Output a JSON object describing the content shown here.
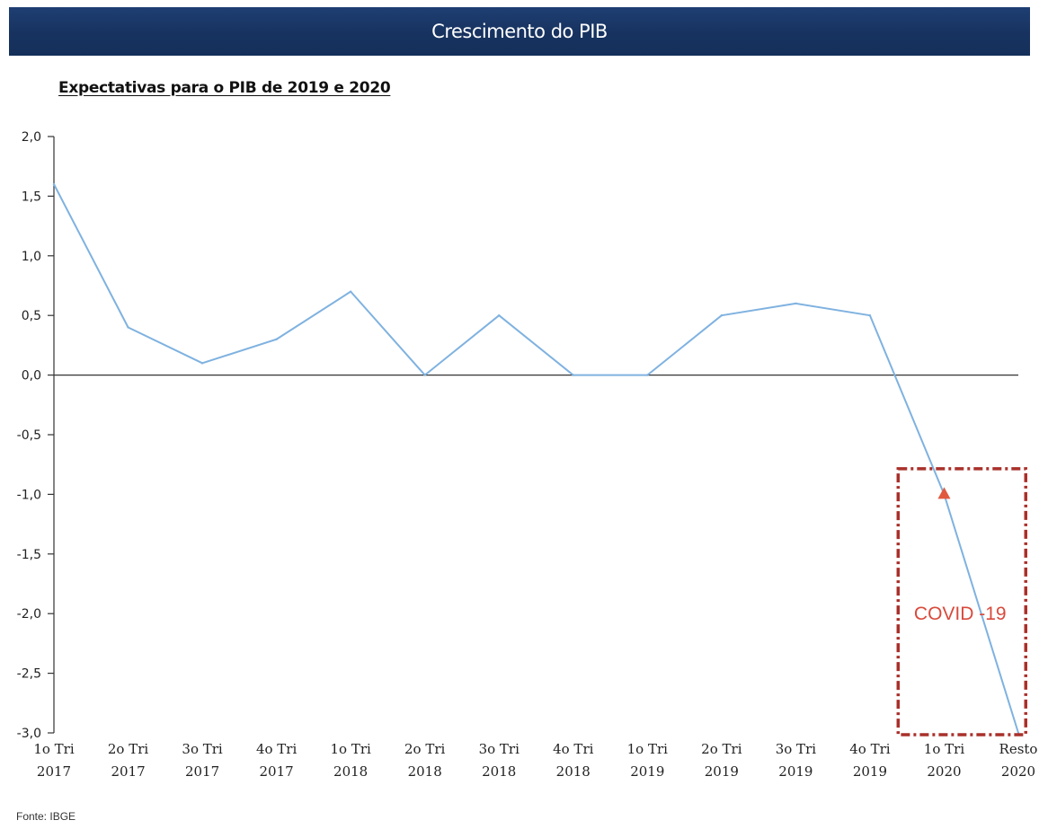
{
  "header": {
    "title": "Crescimento do PIB"
  },
  "source": "Fonte: IBGE",
  "colors": {
    "header_bg": "#17325f",
    "line": "#7fb2e0",
    "axis": "#333333",
    "covid": "#c0392b"
  },
  "chart_data": {
    "type": "line",
    "title": "Expectativas para o PIB de 2019 e 2020",
    "xlabel": "",
    "ylabel": "",
    "ylim": [
      -3.0,
      2.0
    ],
    "yticks": [
      "2,0",
      "1,5",
      "1,0",
      "0,5",
      "0,0",
      "-0,5",
      "-1,0",
      "-1,5",
      "-2,0",
      "-2,5",
      "-3,0"
    ],
    "ytick_values": [
      2.0,
      1.5,
      1.0,
      0.5,
      0.0,
      -0.5,
      -1.0,
      -1.5,
      -2.0,
      -2.5,
      -3.0
    ],
    "categories": [
      [
        "1o Tri",
        "2017"
      ],
      [
        "2o Tri",
        "2017"
      ],
      [
        "3o Tri",
        "2017"
      ],
      [
        "4o Tri",
        "2017"
      ],
      [
        "1o Tri",
        "2018"
      ],
      [
        "2o Tri",
        "2018"
      ],
      [
        "3o Tri",
        "2018"
      ],
      [
        "4o Tri",
        "2018"
      ],
      [
        "1o Tri",
        "2019"
      ],
      [
        "2o Tri",
        "2019"
      ],
      [
        "3o Tri",
        "2019"
      ],
      [
        "4o Tri",
        "2019"
      ],
      [
        "1o Tri",
        "2020"
      ],
      [
        "Resto",
        "2020"
      ]
    ],
    "series": [
      {
        "values": [
          1.6,
          0.4,
          0.1,
          0.3,
          0.7,
          0.0,
          0.5,
          0.0,
          0.0,
          0.5,
          0.6,
          0.5,
          -1.0,
          -3.0
        ]
      }
    ],
    "marker": {
      "category_index": 12,
      "value": -1.0,
      "shape": "triangle"
    },
    "annotation": {
      "text": "COVID -19",
      "from_category": 12,
      "to_category": 13,
      "y_range": [
        -3.0,
        -0.8
      ]
    },
    "grid": false,
    "legend": "none"
  }
}
